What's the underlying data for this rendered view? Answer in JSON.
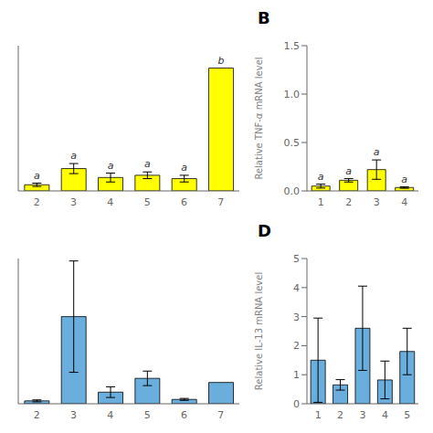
{
  "chart_data": [
    {
      "type": "bar",
      "categories": [
        "2",
        "3",
        "4",
        "5",
        "6",
        "7"
      ],
      "values": [
        0.055,
        0.2,
        0.12,
        0.14,
        0.11,
        1.1
      ],
      "errors": [
        0.015,
        0.045,
        0.04,
        0.03,
        0.03,
        0.0
      ],
      "annotations": [
        "a",
        "a",
        "a",
        "a",
        "a",
        "b"
      ],
      "color": "#FFFF00",
      "ylim": [
        0,
        1.3
      ],
      "tick_labels": "x"
    },
    {
      "type": "bar",
      "title": "B",
      "categories": [
        "1",
        "2",
        "3",
        "4"
      ],
      "values": [
        0.05,
        0.11,
        0.22,
        0.035
      ],
      "errors": [
        0.02,
        0.018,
        0.1,
        0.008
      ],
      "annotations": [
        "a",
        "a",
        "a",
        "a"
      ],
      "color": "#FFFF00",
      "ylim": [
        0,
        1.5
      ],
      "yticks": [
        {
          "value": 0,
          "label": "0.0"
        },
        0.5,
        {
          "value": 1,
          "label": "1.0"
        },
        1.5
      ],
      "y_label": "Relative TNF-α  mRNA level"
    },
    {
      "type": "bar",
      "categories": [
        "2",
        "3",
        "4",
        "5",
        "6",
        "7"
      ],
      "values": [
        0.12,
        3.6,
        0.48,
        1.05,
        0.18,
        0.88
      ],
      "errors": [
        0.04,
        2.3,
        0.22,
        0.3,
        0.04,
        0.0
      ],
      "color": "#6aaedd",
      "ylim": [
        0,
        6
      ],
      "tick_labels": "x"
    },
    {
      "type": "bar",
      "title": "D",
      "categories": [
        "1",
        "2",
        "3",
        "4",
        "5"
      ],
      "values": [
        1.5,
        0.65,
        2.6,
        0.82,
        1.8
      ],
      "errors": [
        1.45,
        0.18,
        1.45,
        0.65,
        0.8
      ],
      "color": "#6aaedd",
      "ylim": [
        0,
        5
      ],
      "yticks": [
        0,
        1,
        2,
        3,
        4,
        5
      ],
      "y_label": "Relative IL-13 mRNA level"
    }
  ]
}
